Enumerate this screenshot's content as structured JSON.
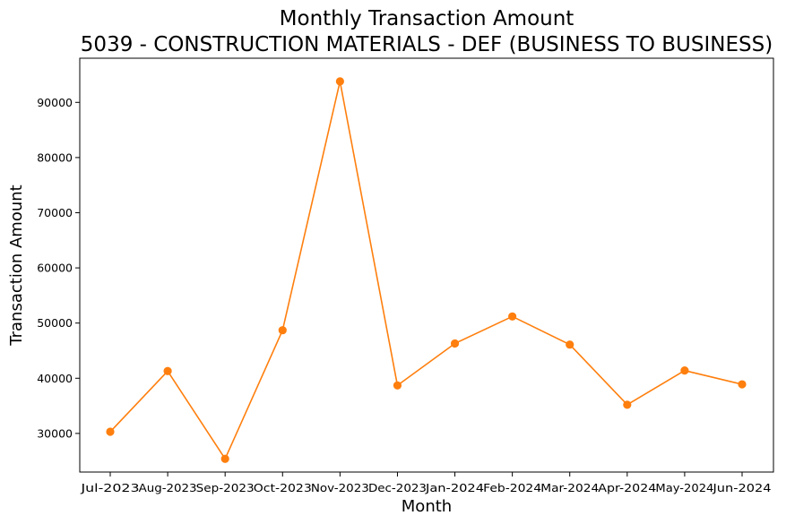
{
  "chart_data": {
    "type": "line",
    "title": "Monthly Transaction Amount",
    "subtitle": "5039 - CONSTRUCTION MATERIALS - DEF (BUSINESS TO BUSINESS)",
    "xlabel": "Month",
    "ylabel": "Transaction Amount",
    "categories": [
      "Jul-2023",
      "Aug-2023",
      "Sep-2023",
      "Oct-2023",
      "Nov-2023",
      "Dec-2023",
      "Jan-2024",
      "Feb-2024",
      "Mar-2024",
      "Apr-2024",
      "May-2024",
      "Jun-2024"
    ],
    "values": [
      30300,
      41300,
      25400,
      48700,
      93800,
      38700,
      46300,
      51200,
      46100,
      35200,
      41400,
      38900
    ],
    "ylim": [
      23000,
      98000
    ],
    "yticks": [
      30000,
      40000,
      50000,
      60000,
      70000,
      80000,
      90000
    ],
    "ytick_labels": [
      "30000",
      "40000",
      "50000",
      "60000",
      "70000",
      "80000",
      "90000"
    ],
    "grid": false,
    "legend": "none",
    "line_color": "#ff7f0e",
    "marker": "circle"
  }
}
